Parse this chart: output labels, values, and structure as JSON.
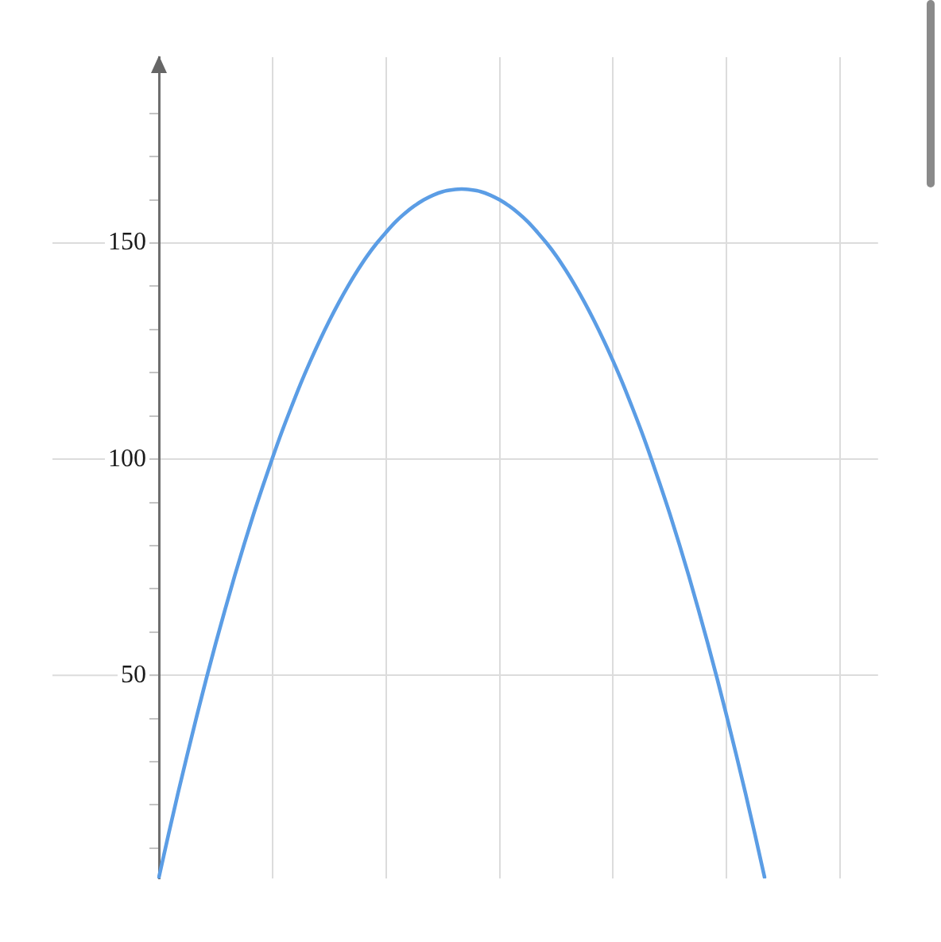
{
  "chart_data": {
    "type": "line",
    "categories": [
      null,
      null,
      null,
      null,
      null,
      null,
      null,
      null,
      null,
      null,
      null,
      null,
      null,
      null,
      null,
      null,
      null,
      null,
      null,
      null,
      null,
      null,
      null,
      null,
      null,
      null,
      null,
      null,
      null,
      null,
      null,
      null,
      null,
      null,
      null,
      null,
      null,
      null,
      null,
      null,
      null,
      null,
      null,
      null,
      null,
      null,
      null,
      null,
      null,
      null,
      null,
      null,
      null,
      null,
      null,
      null,
      null,
      null,
      null,
      null,
      null,
      null,
      null,
      null,
      null,
      null,
      null,
      null,
      null,
      null,
      null,
      null,
      null,
      null,
      null,
      null,
      null
    ],
    "values": [
      3.3,
      13.1,
      22.6,
      31.7,
      40.6,
      49.2,
      57.4,
      65.3,
      73.0,
      80.3,
      87.3,
      93.9,
      100.3,
      106.4,
      112.1,
      117.6,
      122.7,
      127.5,
      132.0,
      136.2,
      140.1,
      143.7,
      147.0,
      149.9,
      152.5,
      154.9,
      156.9,
      158.6,
      160.0,
      161.1,
      161.9,
      162.3,
      162.5,
      162.3,
      161.9,
      161.1,
      160.0,
      158.6,
      156.9,
      154.9,
      152.5,
      149.9,
      147.0,
      143.7,
      140.1,
      136.2,
      132.0,
      127.5,
      122.7,
      117.6,
      112.1,
      106.4,
      100.3,
      93.9,
      87.3,
      80.3,
      73.0,
      65.3,
      57.4,
      49.2,
      40.6,
      31.7,
      22.6,
      13.1,
      3.3,
      null,
      null,
      null,
      null,
      null,
      null,
      null,
      null,
      null,
      null,
      null,
      null
    ],
    "color": "#5b9de5",
    "ylim": [
      3,
      193
    ],
    "yticks": [
      {
        "value": 10,
        "label": null
      },
      {
        "value": 20,
        "label": null
      },
      {
        "value": 30,
        "label": null
      },
      {
        "value": 40,
        "label": null
      },
      50,
      {
        "value": 60,
        "label": null
      },
      {
        "value": 70,
        "label": null
      },
      {
        "value": 80,
        "label": null
      },
      {
        "value": 90,
        "label": null
      },
      100,
      {
        "value": 110,
        "label": null
      },
      {
        "value": 120,
        "label": null
      },
      {
        "value": 130,
        "label": null
      },
      {
        "value": 140,
        "label": null
      },
      150,
      {
        "value": 160,
        "label": null
      },
      {
        "value": 170,
        "label": null
      },
      {
        "value": 180,
        "label": null
      }
    ],
    "grid": true,
    "tick_labels": "y"
  }
}
